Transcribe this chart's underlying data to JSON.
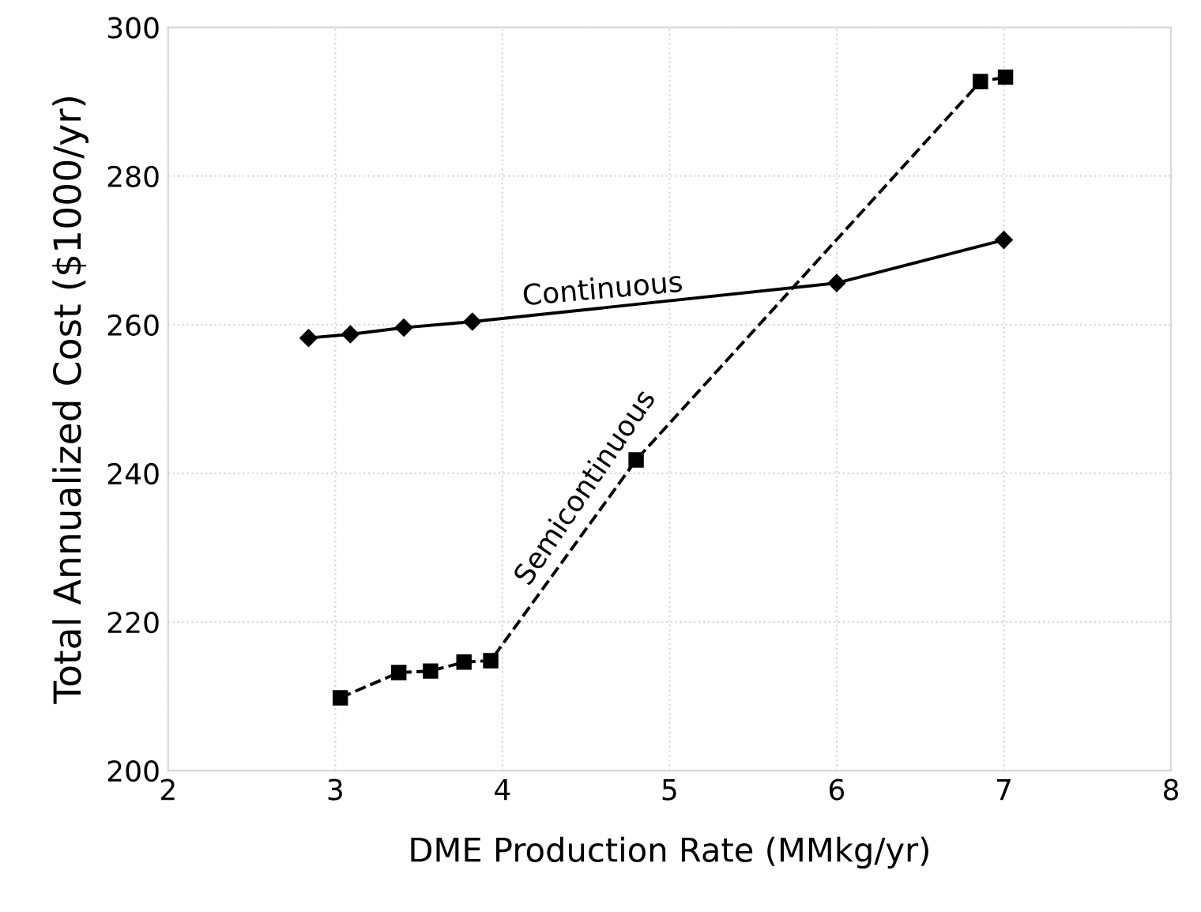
{
  "chart_data": {
    "type": "line",
    "xlabel": "DME Production Rate (MMkg/yr)",
    "ylabel": "Total Annualized Cost ($1000/yr)",
    "series": [
      {
        "name": "Continuous",
        "color": "#000000",
        "marker": "diamond",
        "line_style": "solid",
        "x": [
          2.84,
          3.09,
          3.41,
          3.82,
          6.0,
          7.0
        ],
        "values": [
          258.2,
          258.7,
          259.6,
          260.4,
          265.6,
          271.4
        ]
      },
      {
        "name": "Semicontinuous",
        "color": "#000000",
        "marker": "square",
        "line_style": "dashed",
        "x": [
          3.03,
          3.38,
          3.57,
          3.77,
          3.93,
          4.8,
          6.86,
          7.01
        ],
        "values": [
          209.8,
          213.2,
          213.4,
          214.6,
          214.8,
          241.8,
          292.7,
          293.3
        ]
      }
    ],
    "xlim": [
      2,
      8
    ],
    "xticks": [
      2,
      3,
      4,
      5,
      6,
      7,
      8
    ],
    "ylim": [
      200,
      300
    ],
    "yticks": [
      200,
      220,
      240,
      260,
      280,
      300
    ],
    "grid": true,
    "legend": false
  }
}
